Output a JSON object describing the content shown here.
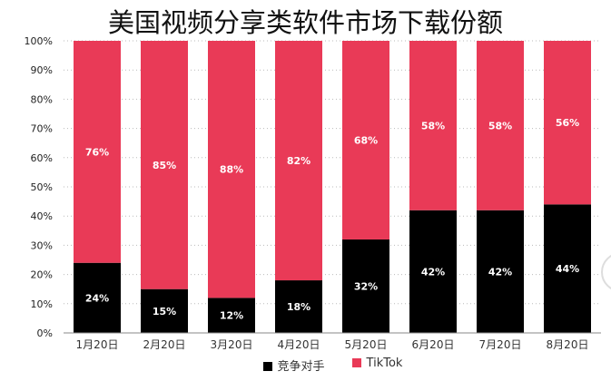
{
  "chart_data": {
    "type": "bar",
    "stacked": "percent",
    "title": "美国视频分享类软件市场下载份额",
    "categories": [
      "1月20日",
      "2月20日",
      "3月20日",
      "4月20日",
      "5月20日",
      "6月20日",
      "7月20日",
      "8月20日"
    ],
    "series": [
      {
        "name": "竞争对手",
        "color": "#000000",
        "values": [
          24,
          15,
          12,
          18,
          32,
          42,
          42,
          44
        ]
      },
      {
        "name": "TikTok",
        "color": "#E93A57",
        "values": [
          76,
          85,
          88,
          82,
          68,
          58,
          58,
          56
        ]
      }
    ],
    "ylim": [
      0,
      100
    ],
    "yticks": [
      "0%",
      "10%",
      "20%",
      "30%",
      "40%",
      "50%",
      "60%",
      "70%",
      "80%",
      "90%",
      "100%"
    ],
    "grid": true,
    "legend": "bottom"
  }
}
